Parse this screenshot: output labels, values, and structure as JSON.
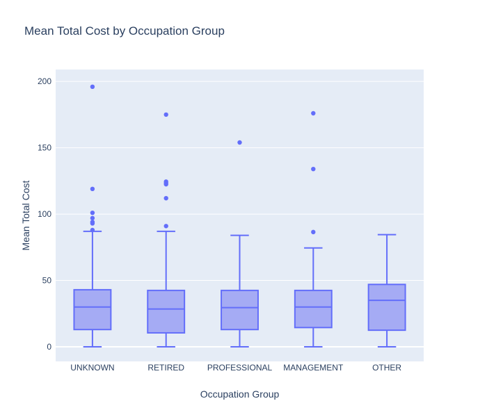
{
  "chart_data": {
    "type": "box",
    "title": "Mean Total Cost by Occupation Group",
    "xlabel": "Occupation Group",
    "ylabel": "Mean Total Cost",
    "ylim": [
      -11,
      209
    ],
    "yticks": [
      0,
      50,
      100,
      150,
      200
    ],
    "grid": true,
    "categories": [
      "UNKNOWN",
      "RETIRED",
      "PROFESSIONAL",
      "MANAGEMENT",
      "OTHER"
    ],
    "boxes": [
      {
        "category": "UNKNOWN",
        "min": 0,
        "q1": 13,
        "median": 30,
        "q3": 43,
        "upper_fence": 87,
        "outliers": [
          196,
          119,
          101,
          97,
          94,
          93,
          88
        ]
      },
      {
        "category": "RETIRED",
        "min": 0,
        "q1": 10.5,
        "median": 28.5,
        "q3": 42.5,
        "upper_fence": 87,
        "outliers": [
          175,
          124.5,
          123.5,
          122.5,
          112,
          91
        ]
      },
      {
        "category": "PROFESSIONAL",
        "min": 0,
        "q1": 13,
        "median": 29.5,
        "q3": 42.5,
        "upper_fence": 84,
        "outliers": [
          154
        ]
      },
      {
        "category": "MANAGEMENT",
        "min": 0,
        "q1": 14.5,
        "median": 30,
        "q3": 42.5,
        "upper_fence": 74.5,
        "outliers": [
          176,
          134,
          86.5
        ]
      },
      {
        "category": "OTHER",
        "min": 0,
        "q1": 12.5,
        "median": 35,
        "q3": 47,
        "upper_fence": 84.5,
        "outliers": []
      }
    ],
    "colors": {
      "plot_bg": "#e5ecf6",
      "grid": "#ffffff",
      "box_line": "#636efa",
      "box_fill": "#a5abf4",
      "text": "#2a3f5f"
    }
  }
}
